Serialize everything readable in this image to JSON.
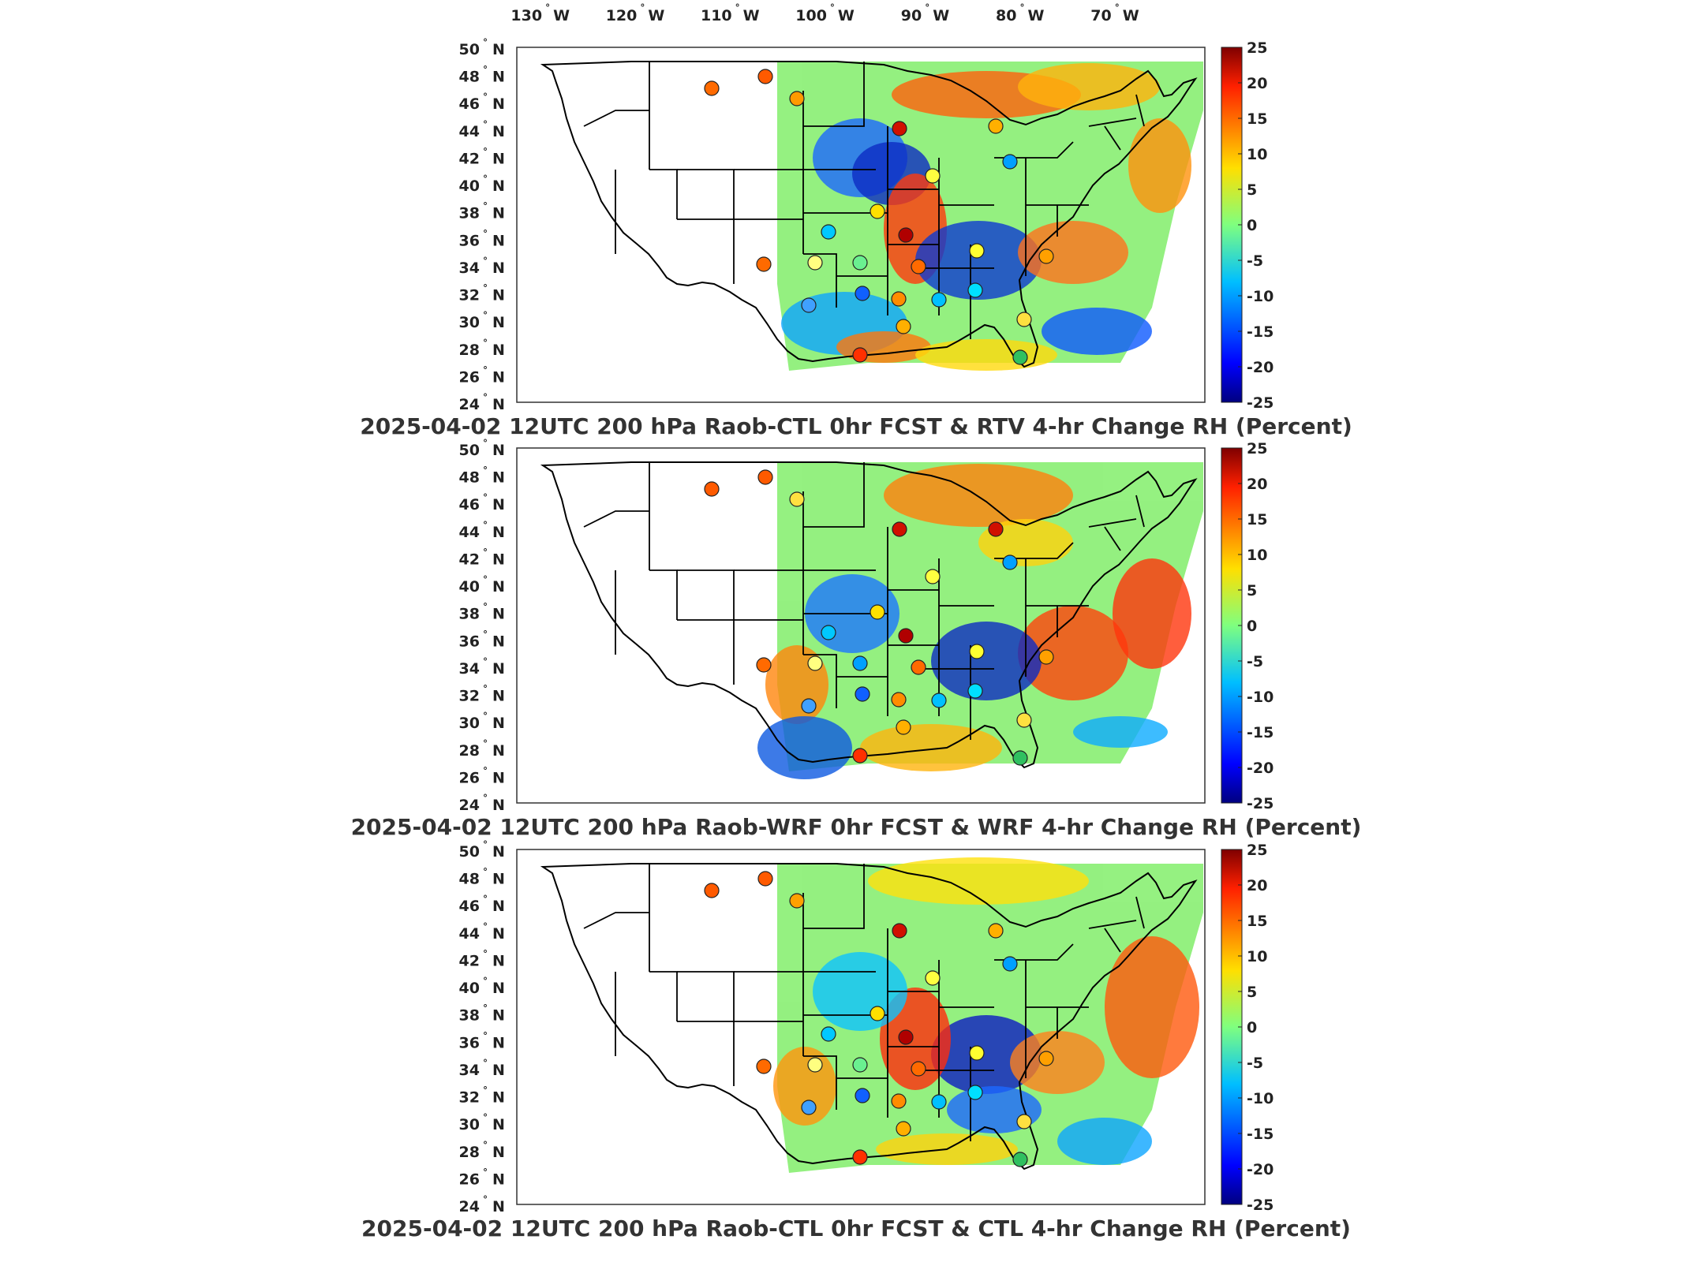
{
  "figure": {
    "top_axis_labels": [
      {
        "value": "130",
        "hemi": "W"
      },
      {
        "value": "120",
        "hemi": "W"
      },
      {
        "value": "110",
        "hemi": "W"
      },
      {
        "value": "100",
        "hemi": "W"
      },
      {
        "value": "90",
        "hemi": "W"
      },
      {
        "value": "80",
        "hemi": "W"
      },
      {
        "value": "70",
        "hemi": "W"
      }
    ],
    "lat_labels": [
      {
        "value": "50",
        "hemi": "N"
      },
      {
        "value": "48",
        "hemi": "N"
      },
      {
        "value": "46",
        "hemi": "N"
      },
      {
        "value": "44",
        "hemi": "N"
      },
      {
        "value": "42",
        "hemi": "N"
      },
      {
        "value": "40",
        "hemi": "N"
      },
      {
        "value": "38",
        "hemi": "N"
      },
      {
        "value": "36",
        "hemi": "N"
      },
      {
        "value": "34",
        "hemi": "N"
      },
      {
        "value": "32",
        "hemi": "N"
      },
      {
        "value": "30",
        "hemi": "N"
      },
      {
        "value": "28",
        "hemi": "N"
      },
      {
        "value": "26",
        "hemi": "N"
      },
      {
        "value": "24",
        "hemi": "N"
      }
    ],
    "degree_symbol": "°",
    "colorbar": {
      "ticks": [
        "25",
        "20",
        "15",
        "10",
        "5",
        "0",
        "-5",
        "-10",
        "-15",
        "-20",
        "-25"
      ],
      "range": [
        -25,
        25
      ],
      "colormap": "jet"
    },
    "panels": [
      {
        "title": "2025-04-02 12UTC 200 hPa Raob-CTL 0hr FCST & RTV 4-hr Change RH (Percent)"
      },
      {
        "title": "2025-04-02 12UTC 200 hPa Raob-WRF 0hr FCST & WRF 4-hr Change RH (Percent)"
      },
      {
        "title": "2025-04-02 12UTC 200 hPa Raob-CTL 0hr FCST & CTL 4-hr Change RH (Percent)"
      }
    ]
  },
  "colors": {
    "background": "#ffffff",
    "map_land": "#ffffff",
    "borders": "#000000",
    "text": "#222222"
  }
}
